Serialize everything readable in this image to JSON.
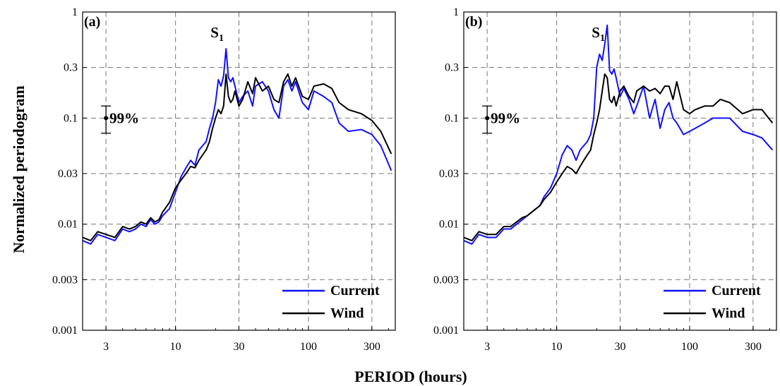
{
  "figure": {
    "xlabel": "PERIOD (hours)",
    "ylabel": "Normalized periodogram"
  },
  "chart_data": [
    {
      "type": "line",
      "panel": "(a)",
      "xscale": "log",
      "yscale": "log",
      "xlim": [
        2,
        450
      ],
      "ylim": [
        0.001,
        1
      ],
      "xticks": [
        3,
        10,
        30,
        100,
        300
      ],
      "xtick_labels": [
        "3",
        "10",
        "30",
        "100",
        "300"
      ],
      "yticks": [
        0.001,
        0.003,
        0.01,
        0.03,
        0.1,
        0.3,
        1
      ],
      "ytick_labels": [
        "0.001",
        "0.003",
        "0.01",
        "0.03",
        "0.1",
        "0.3",
        "1"
      ],
      "grid": "dashed",
      "legend": "bottom-right",
      "peak_label": {
        "text": "S",
        "sub": "1",
        "x": 24
      },
      "confidence": {
        "label": "99%",
        "x": 3,
        "y": 0.1,
        "lower": 0.072,
        "upper": 0.13
      },
      "series": [
        {
          "name": "Current",
          "color": "#1010ff",
          "x": [
            2,
            2.3,
            2.6,
            3,
            3.5,
            4,
            4.5,
            5,
            5.5,
            6,
            6.5,
            7,
            7.5,
            8,
            9,
            10,
            11,
            12,
            13,
            14,
            15,
            16,
            17,
            18,
            19,
            20,
            21,
            22,
            23,
            24,
            25,
            26,
            27,
            28,
            30,
            32,
            35,
            38,
            40,
            45,
            50,
            55,
            60,
            65,
            70,
            75,
            80,
            90,
            100,
            110,
            130,
            150,
            170,
            200,
            250,
            300,
            350,
            420
          ],
          "values": [
            0.007,
            0.0065,
            0.008,
            0.0075,
            0.007,
            0.009,
            0.0085,
            0.009,
            0.01,
            0.0095,
            0.011,
            0.01,
            0.0105,
            0.012,
            0.014,
            0.02,
            0.028,
            0.034,
            0.04,
            0.036,
            0.05,
            0.055,
            0.06,
            0.08,
            0.1,
            0.14,
            0.23,
            0.2,
            0.25,
            0.45,
            0.24,
            0.22,
            0.24,
            0.2,
            0.14,
            0.16,
            0.18,
            0.13,
            0.2,
            0.22,
            0.18,
            0.12,
            0.1,
            0.2,
            0.23,
            0.18,
            0.22,
            0.14,
            0.12,
            0.18,
            0.16,
            0.14,
            0.09,
            0.075,
            0.078,
            0.07,
            0.055,
            0.032
          ]
        },
        {
          "name": "Wind",
          "color": "#000000",
          "x": [
            2,
            2.3,
            2.6,
            3,
            3.5,
            4,
            4.5,
            5,
            5.5,
            6,
            6.5,
            7,
            7.5,
            8,
            9,
            10,
            11,
            12,
            13,
            14,
            15,
            16,
            17,
            18,
            19,
            20,
            21,
            22,
            23,
            24,
            25,
            26,
            27,
            28,
            30,
            32,
            35,
            38,
            40,
            45,
            50,
            55,
            60,
            65,
            70,
            75,
            80,
            90,
            100,
            110,
            130,
            150,
            170,
            200,
            250,
            300,
            350,
            420
          ],
          "values": [
            0.0075,
            0.007,
            0.0085,
            0.008,
            0.0075,
            0.0095,
            0.009,
            0.0095,
            0.0105,
            0.01,
            0.0115,
            0.0105,
            0.011,
            0.013,
            0.016,
            0.022,
            0.026,
            0.03,
            0.035,
            0.034,
            0.04,
            0.045,
            0.05,
            0.06,
            0.08,
            0.1,
            0.12,
            0.11,
            0.13,
            0.26,
            0.16,
            0.14,
            0.15,
            0.18,
            0.13,
            0.15,
            0.22,
            0.17,
            0.24,
            0.18,
            0.2,
            0.15,
            0.14,
            0.22,
            0.26,
            0.2,
            0.24,
            0.16,
            0.15,
            0.2,
            0.21,
            0.19,
            0.14,
            0.12,
            0.11,
            0.095,
            0.075,
            0.046
          ]
        }
      ]
    },
    {
      "type": "line",
      "panel": "(b)",
      "xscale": "log",
      "yscale": "log",
      "xlim": [
        2,
        450
      ],
      "ylim": [
        0.001,
        1
      ],
      "xticks": [
        3,
        10,
        30,
        100,
        300
      ],
      "xtick_labels": [
        "3",
        "10",
        "30",
        "100",
        "300"
      ],
      "yticks": [
        0.001,
        0.003,
        0.01,
        0.03,
        0.1,
        0.3,
        1
      ],
      "ytick_labels": [
        "0.001",
        "0.003",
        "0.01",
        "0.03",
        "0.1",
        "0.3",
        "1"
      ],
      "grid": "dashed",
      "legend": "bottom-right",
      "peak_label": {
        "text": "S",
        "sub": "1",
        "x": 24
      },
      "confidence": {
        "label": "99%",
        "x": 3,
        "y": 0.1,
        "lower": 0.072,
        "upper": 0.13
      },
      "series": [
        {
          "name": "Current",
          "color": "#1010ff",
          "x": [
            2,
            2.3,
            2.6,
            3,
            3.5,
            4,
            4.5,
            5,
            5.5,
            6,
            6.5,
            7,
            7.5,
            8,
            9,
            10,
            11,
            12,
            13,
            14,
            15,
            16,
            17,
            18,
            19,
            20,
            21,
            22,
            23,
            24,
            25,
            26,
            27,
            28,
            30,
            32,
            35,
            38,
            40,
            45,
            50,
            55,
            60,
            65,
            70,
            75,
            80,
            90,
            100,
            110,
            130,
            150,
            170,
            200,
            250,
            300,
            350,
            420
          ],
          "values": [
            0.007,
            0.0065,
            0.008,
            0.0075,
            0.0075,
            0.009,
            0.009,
            0.01,
            0.011,
            0.012,
            0.013,
            0.014,
            0.015,
            0.018,
            0.022,
            0.03,
            0.045,
            0.055,
            0.05,
            0.04,
            0.05,
            0.055,
            0.06,
            0.07,
            0.1,
            0.3,
            0.4,
            0.35,
            0.5,
            0.75,
            0.28,
            0.26,
            0.29,
            0.24,
            0.16,
            0.19,
            0.15,
            0.11,
            0.13,
            0.2,
            0.1,
            0.15,
            0.08,
            0.12,
            0.14,
            0.1,
            0.09,
            0.07,
            0.075,
            0.08,
            0.09,
            0.1,
            0.1,
            0.1,
            0.075,
            0.07,
            0.065,
            0.05
          ]
        },
        {
          "name": "Wind",
          "color": "#000000",
          "x": [
            2,
            2.3,
            2.6,
            3,
            3.5,
            4,
            4.5,
            5,
            5.5,
            6,
            6.5,
            7,
            7.5,
            8,
            9,
            10,
            11,
            12,
            13,
            14,
            15,
            16,
            17,
            18,
            19,
            20,
            21,
            22,
            23,
            24,
            25,
            26,
            27,
            28,
            30,
            32,
            35,
            38,
            40,
            45,
            50,
            55,
            60,
            65,
            70,
            75,
            80,
            90,
            100,
            110,
            130,
            150,
            170,
            200,
            250,
            300,
            350,
            420
          ],
          "values": [
            0.0075,
            0.007,
            0.0085,
            0.008,
            0.008,
            0.0095,
            0.0095,
            0.0105,
            0.0115,
            0.012,
            0.013,
            0.014,
            0.015,
            0.017,
            0.02,
            0.025,
            0.03,
            0.035,
            0.033,
            0.03,
            0.035,
            0.04,
            0.045,
            0.05,
            0.07,
            0.09,
            0.12,
            0.18,
            0.26,
            0.24,
            0.15,
            0.14,
            0.16,
            0.13,
            0.18,
            0.2,
            0.16,
            0.14,
            0.18,
            0.2,
            0.18,
            0.19,
            0.17,
            0.2,
            0.2,
            0.15,
            0.22,
            0.12,
            0.11,
            0.12,
            0.13,
            0.13,
            0.15,
            0.14,
            0.11,
            0.12,
            0.12,
            0.09
          ]
        }
      ]
    }
  ]
}
